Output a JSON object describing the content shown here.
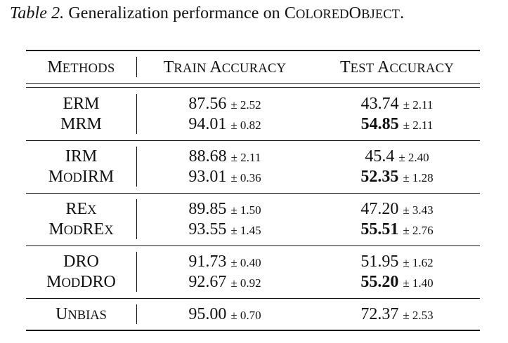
{
  "caption": {
    "label": "Table 2.",
    "text": "Generalization performance on",
    "dataset_first": "C",
    "dataset_mid": "olored",
    "dataset_cap2": "O",
    "dataset_rest": "bject",
    "period": "."
  },
  "header": {
    "methods": {
      "first": "M",
      "rest": "ethods"
    },
    "train": {
      "first1": "T",
      "rest1": "rain",
      "first2": "A",
      "rest2": "ccuracy"
    },
    "test": {
      "first1": "T",
      "rest1": "est",
      "first2": "A",
      "rest2": "ccuracy"
    }
  },
  "rows": [
    {
      "method": "ERM",
      "train": "87.56",
      "train_pm": "± 2.52",
      "test": "43.74",
      "test_pm": "± 2.11",
      "test_bold": false
    },
    {
      "method": "MRM",
      "train": "94.01",
      "train_pm": "± 0.82",
      "test": "54.85",
      "test_pm": "± 2.11",
      "test_bold": true
    },
    {
      "method": "IRM",
      "train": "88.68",
      "train_pm": "± 2.11",
      "test": "45.4",
      "test_pm": "± 2.40",
      "test_bold": false
    },
    {
      "method_first": "M",
      "method_small": "od",
      "method_rest": "IRM",
      "train": "93.01",
      "train_pm": "± 0.36",
      "test": "52.35",
      "test_pm": "± 1.28",
      "test_bold": true
    },
    {
      "method_first": "RE",
      "method_small": "x",
      "method_rest": "",
      "train": "89.85",
      "train_pm": "± 1.50",
      "test": "47.20",
      "test_pm": "± 3.43",
      "test_bold": false
    },
    {
      "method_first": "M",
      "method_small": "od",
      "method_rest": "RE",
      "method_small2": "x",
      "train": "93.55",
      "train_pm": "± 1.45",
      "test": "55.51",
      "test_pm": "± 2.76",
      "test_bold": true
    },
    {
      "method": "DRO",
      "train": "91.73",
      "train_pm": "± 0.40",
      "test": "51.95",
      "test_pm": "± 1.62",
      "test_bold": false
    },
    {
      "method_first": "M",
      "method_small": "od",
      "method_rest": "DRO",
      "train": "92.67",
      "train_pm": "± 0.92",
      "test": "55.20",
      "test_pm": "± 1.40",
      "test_bold": true
    },
    {
      "method_first": "U",
      "method_small": "nbias",
      "method_rest": "",
      "train": "95.00",
      "train_pm": "± 0.70",
      "test": "72.37",
      "test_pm": "± 2.53",
      "test_bold": false
    }
  ]
}
